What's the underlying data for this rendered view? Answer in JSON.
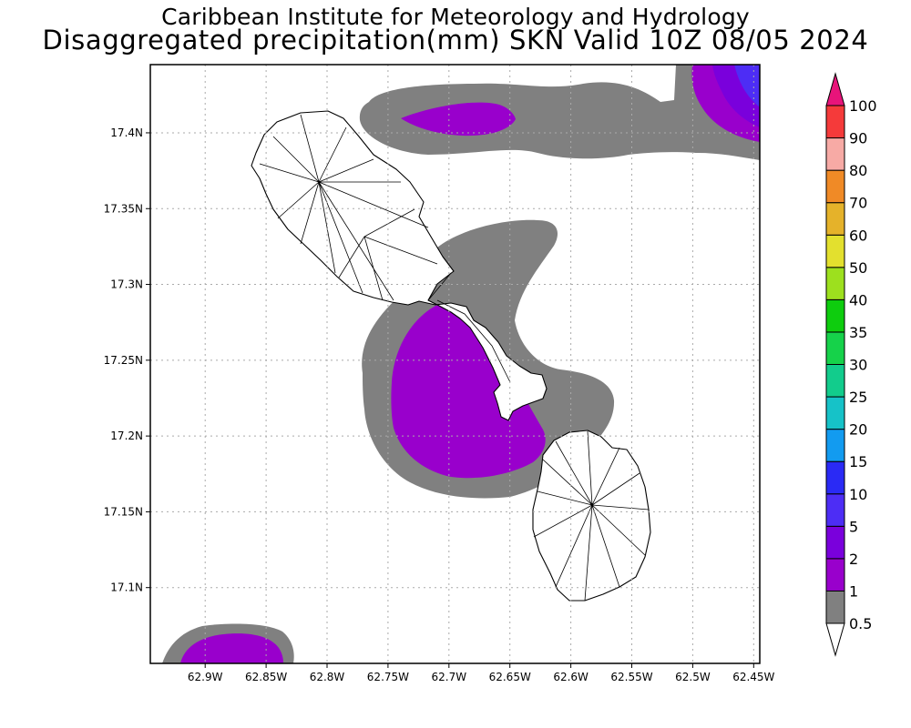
{
  "title": {
    "line1": "Caribbean Institute for Meteorology and Hydrology",
    "line2": "Disaggregated precipitation(mm) SKN Valid 10Z 08/05 2024"
  },
  "map": {
    "lon_range": [
      -62.945,
      -62.445
    ],
    "lat_range": [
      17.05,
      17.445
    ],
    "x_ticks": [
      {
        "value": -62.9,
        "label": "62.9W"
      },
      {
        "value": -62.85,
        "label": "62.85W"
      },
      {
        "value": -62.8,
        "label": "62.8W"
      },
      {
        "value": -62.75,
        "label": "62.75W"
      },
      {
        "value": -62.7,
        "label": "62.7W"
      },
      {
        "value": -62.65,
        "label": "62.65W"
      },
      {
        "value": -62.6,
        "label": "62.6W"
      },
      {
        "value": -62.55,
        "label": "62.55W"
      },
      {
        "value": -62.5,
        "label": "62.5W"
      },
      {
        "value": -62.45,
        "label": "62.45W"
      }
    ],
    "y_ticks": [
      {
        "value": 17.1,
        "label": "17.1N"
      },
      {
        "value": 17.15,
        "label": "17.15N"
      },
      {
        "value": 17.2,
        "label": "17.2N"
      },
      {
        "value": 17.25,
        "label": "17.25N"
      },
      {
        "value": 17.3,
        "label": "17.3N"
      },
      {
        "value": 17.35,
        "label": "17.35N"
      },
      {
        "value": 17.4,
        "label": "17.4N"
      }
    ],
    "grid": "dotted",
    "precip_colors": {
      "0.5-1": "#808080",
      "1-2": "#9900cc",
      "2-5": "#7a00dc",
      "5-10": "#4d2df5"
    },
    "islands": [
      "St. Kitts",
      "Nevis"
    ],
    "land_fill": "#ffffff"
  },
  "colorbar": {
    "levels": [
      "0.5",
      "1",
      "2",
      "5",
      "10",
      "15",
      "20",
      "25",
      "30",
      "35",
      "40",
      "50",
      "60",
      "70",
      "80",
      "90",
      "100"
    ],
    "colors": [
      "#808080",
      "#9900cc",
      "#7a00dc",
      "#4d2df5",
      "#2a2af5",
      "#129bf0",
      "#16c2c8",
      "#12cc8c",
      "#16d24a",
      "#0ecd0e",
      "#9de01e",
      "#e3e02e",
      "#e5b22a",
      "#f08a26",
      "#f7aaa5",
      "#f53a3a",
      "#f93b3e"
    ],
    "cap_low_color": "#ffffff",
    "cap_high_color": "#e8147a"
  }
}
